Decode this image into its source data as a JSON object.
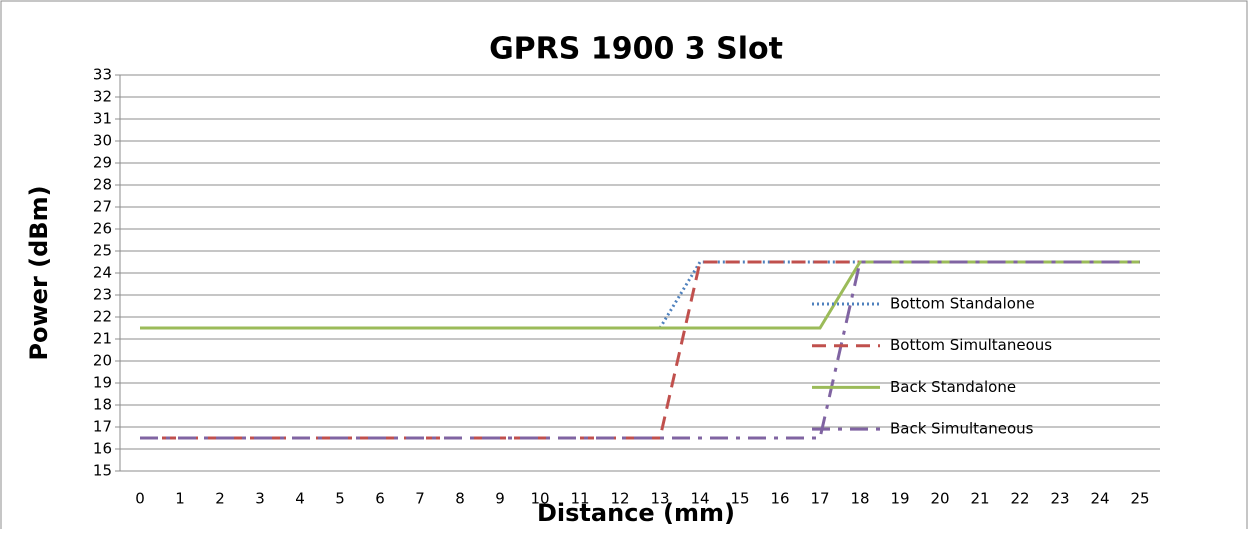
{
  "chart_data": {
    "type": "line",
    "title": "GPRS 1900 3 Slot",
    "x_label": "Distance (mm)",
    "y_label": "Power (dBm)",
    "categories": [
      "0",
      "1",
      "2",
      "3",
      "4",
      "5",
      "6",
      "7",
      "8",
      "9",
      "10",
      "11",
      "12",
      "13",
      "14",
      "15",
      "16",
      "17",
      "18",
      "19",
      "20",
      "21",
      "22",
      "23",
      "24",
      "25"
    ],
    "series": [
      {
        "name": "Bottom Standalone",
        "color": "#4f81bd",
        "style": "dotted",
        "values": [
          21.5,
          21.5,
          21.5,
          21.5,
          21.5,
          21.5,
          21.5,
          21.5,
          21.5,
          21.5,
          21.5,
          21.5,
          21.5,
          21.5,
          24.5,
          24.5,
          24.5,
          24.5,
          24.5,
          24.5,
          24.5,
          24.5,
          24.5,
          24.5,
          24.5,
          24.5
        ]
      },
      {
        "name": "Bottom Simultaneous",
        "color": "#c0504d",
        "style": "dashed",
        "values": [
          16.5,
          16.5,
          16.5,
          16.5,
          16.5,
          16.5,
          16.5,
          16.5,
          16.5,
          16.5,
          16.5,
          16.5,
          16.5,
          16.5,
          24.5,
          24.5,
          24.5,
          24.5,
          24.5,
          24.5,
          24.5,
          24.5,
          24.5,
          24.5,
          24.5,
          24.5
        ]
      },
      {
        "name": "Back Standalone",
        "color": "#9bbb59",
        "style": "solid",
        "values": [
          21.5,
          21.5,
          21.5,
          21.5,
          21.5,
          21.5,
          21.5,
          21.5,
          21.5,
          21.5,
          21.5,
          21.5,
          21.5,
          21.5,
          21.5,
          21.5,
          21.5,
          21.5,
          24.5,
          24.5,
          24.5,
          24.5,
          24.5,
          24.5,
          24.5,
          24.5
        ]
      },
      {
        "name": "Back Simultaneous",
        "color": "#8064a2",
        "style": "dashdot",
        "values": [
          16.5,
          16.5,
          16.5,
          16.5,
          16.5,
          16.5,
          16.5,
          16.5,
          16.5,
          16.5,
          16.5,
          16.5,
          16.5,
          16.5,
          16.5,
          16.5,
          16.5,
          16.5,
          24.5,
          24.5,
          24.5,
          24.5,
          24.5,
          24.5,
          24.5,
          24.5
        ]
      }
    ],
    "ylim": [
      15,
      33
    ],
    "yticks": [
      15,
      16,
      17,
      18,
      19,
      20,
      21,
      22,
      23,
      24,
      25,
      26,
      27,
      28,
      29,
      30,
      31,
      32,
      33
    ],
    "grid": true,
    "legend": "right"
  }
}
